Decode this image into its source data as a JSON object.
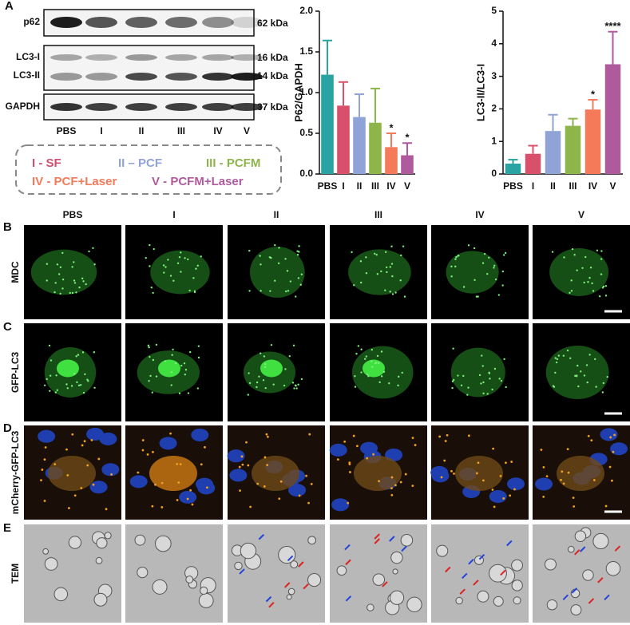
{
  "panel_labels": [
    "A",
    "B",
    "C",
    "D",
    "E"
  ],
  "blot": {
    "proteins": [
      "p62",
      "LC3-I",
      "LC3-II",
      "GAPDH"
    ],
    "sizes": [
      "62 kDa",
      "16 kDa",
      "14 kDa",
      "37 kDa"
    ],
    "lanes": [
      "PBS",
      "I",
      "II",
      "III",
      "IV",
      "V"
    ]
  },
  "groups": [
    {
      "label": "I - SF",
      "color": "#cf4f72"
    },
    {
      "label": "II – PCF",
      "color": "#8fa3d6"
    },
    {
      "label": "III - PCFM",
      "color": "#8db54a"
    },
    {
      "label": "IV - PCF+Laser",
      "color": "#f47a5a"
    },
    {
      "label": "V - PCFM+Laser",
      "color": "#b05a9e"
    }
  ],
  "image_columns": [
    "PBS",
    "I",
    "II",
    "III",
    "IV",
    "V"
  ],
  "image_rows": [
    "MDC",
    "GFP-LC3",
    "mCherry-GFP-LC3",
    "TEM"
  ],
  "chart_data": [
    {
      "type": "bar",
      "y_label": "P62/GAPDH",
      "categories": [
        "PBS",
        "I",
        "II",
        "III",
        "IV",
        "V"
      ],
      "values": [
        1.22,
        0.84,
        0.7,
        0.63,
        0.33,
        0.23
      ],
      "errors": [
        0.42,
        0.29,
        0.28,
        0.42,
        0.17,
        0.15
      ],
      "colors": [
        "#2aa3a3",
        "#d9506a",
        "#8fa3d6",
        "#8db54a",
        "#f47a5a",
        "#b05a9e"
      ],
      "significance": [
        null,
        null,
        null,
        null,
        "*",
        "*"
      ],
      "ylim": [
        0,
        2
      ],
      "yticks": [
        {
          "value": 0,
          "label": "0.0"
        },
        {
          "value": 0.5,
          "label": "0.5"
        },
        {
          "value": 1,
          "label": "1.0"
        },
        {
          "value": 1.5,
          "label": "1.5"
        },
        {
          "value": 2,
          "label": "2.0"
        }
      ]
    },
    {
      "type": "bar",
      "y_label": "LC3-II/LC3-I",
      "categories": [
        "PBS",
        "I",
        "II",
        "III",
        "IV",
        "V"
      ],
      "values": [
        0.32,
        0.62,
        1.32,
        1.48,
        1.98,
        3.37
      ],
      "errors": [
        0.12,
        0.25,
        0.5,
        0.22,
        0.3,
        1.0
      ],
      "colors": [
        "#2aa3a3",
        "#d9506a",
        "#8fa3d6",
        "#8db54a",
        "#f47a5a",
        "#b05a9e"
      ],
      "significance": [
        null,
        null,
        null,
        null,
        "*",
        "****"
      ],
      "ylim": [
        0,
        5
      ],
      "yticks": [
        0,
        1,
        2,
        3,
        4,
        5
      ]
    }
  ]
}
